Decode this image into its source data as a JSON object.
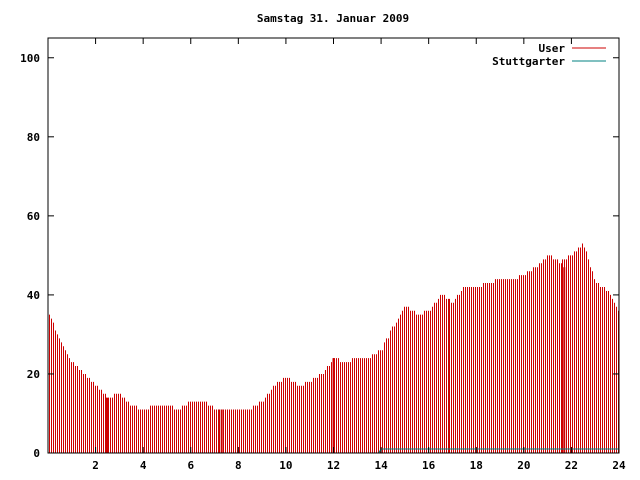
{
  "chart_data": {
    "type": "bar",
    "title": "Samstag 31. Januar 2009",
    "xlabel": "",
    "ylabel": "",
    "xlim": [
      0,
      24
    ],
    "ylim": [
      0,
      105
    ],
    "x_ticks": [
      "2",
      "4",
      "6",
      "8",
      "10",
      "12",
      "14",
      "16",
      "18",
      "20",
      "22",
      "24"
    ],
    "y_ticks": [
      "0",
      "20",
      "40",
      "60",
      "80",
      "100"
    ],
    "grid": false,
    "legend_position": "top-right",
    "series": [
      {
        "name": "User",
        "color": "#cc0000",
        "x": [
          0.0,
          0.5,
          1.0,
          1.5,
          2.0,
          2.5,
          3.0,
          3.5,
          4.0,
          4.5,
          5.0,
          5.5,
          6.0,
          6.5,
          7.0,
          7.5,
          8.0,
          8.5,
          9.0,
          9.5,
          10.0,
          10.5,
          11.0,
          11.5,
          12.0,
          12.5,
          13.0,
          13.5,
          14.0,
          14.5,
          15.0,
          15.5,
          16.0,
          16.5,
          17.0,
          17.5,
          18.0,
          18.5,
          19.0,
          19.5,
          20.0,
          20.5,
          21.0,
          21.5,
          22.0,
          22.5,
          23.0,
          23.5,
          24.0
        ],
        "y": [
          36,
          28,
          23,
          20,
          17,
          14,
          15,
          12,
          11,
          12,
          12,
          11,
          13,
          13,
          11,
          11,
          11,
          11,
          13,
          17,
          19,
          17,
          18,
          20,
          24,
          23,
          24,
          24,
          26,
          32,
          37,
          35,
          36,
          40,
          38,
          42,
          42,
          43,
          44,
          44,
          45,
          47,
          50,
          48,
          50,
          53,
          43,
          41,
          36
        ]
      },
      {
        "name": "Stuttgarter",
        "color": "#008080",
        "x": [
          0.0,
          13.9,
          14.0,
          24.0
        ],
        "y": [
          0,
          0,
          1,
          1
        ]
      }
    ],
    "highlights": [
      {
        "x": 2.5,
        "y": 14
      },
      {
        "x": 7.3,
        "y": 11
      },
      {
        "x": 12.0,
        "y": 24
      },
      {
        "x": 21.7,
        "y": 47
      }
    ]
  }
}
